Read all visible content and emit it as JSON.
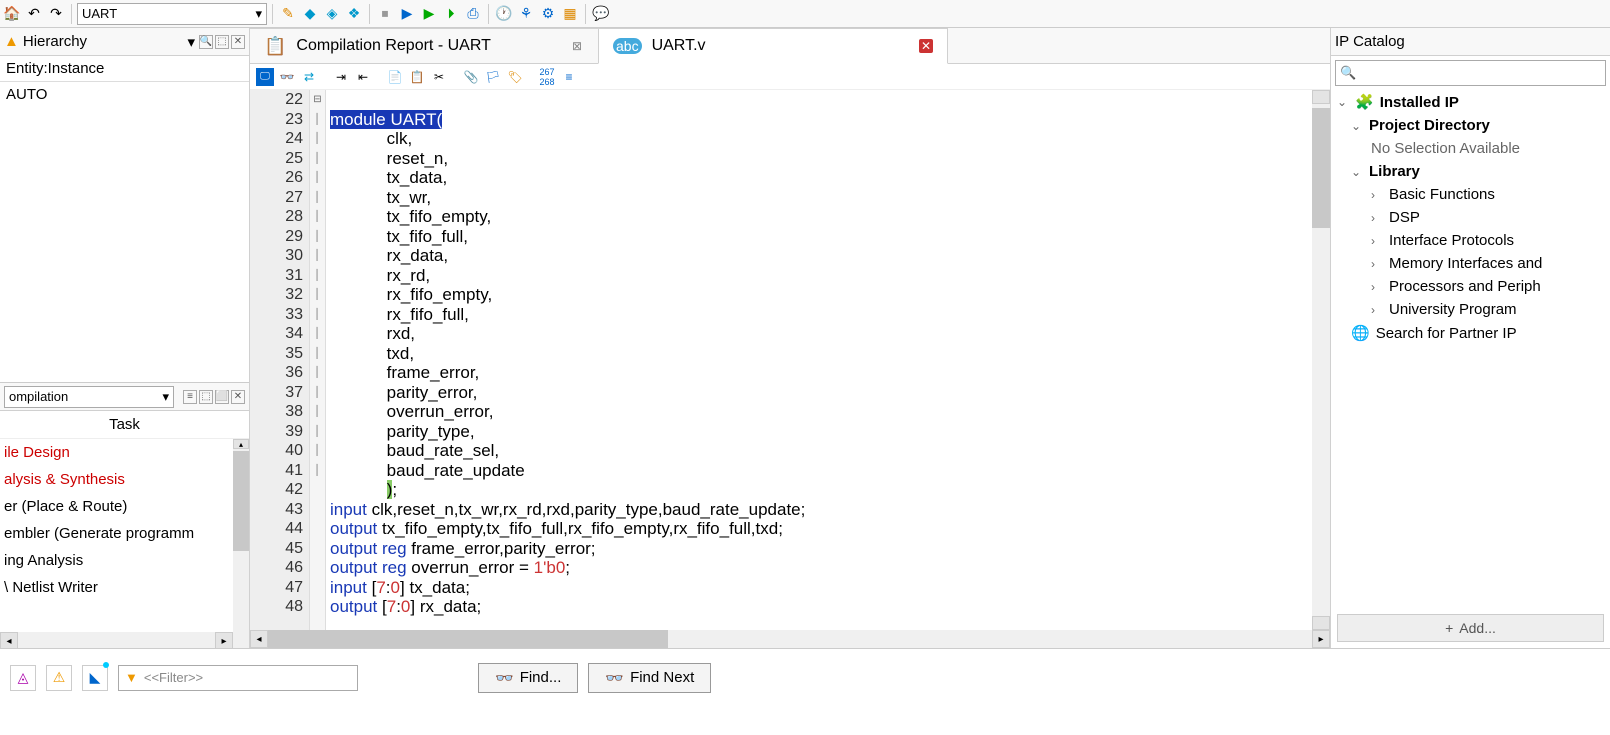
{
  "toolbar": {
    "project_dd": "UART"
  },
  "hierarchy": {
    "title": "Hierarchy",
    "col": "Entity:Instance",
    "row": "AUTO"
  },
  "tasks": {
    "title": "ompilation",
    "header": "Task",
    "items": [
      {
        "text": "ile Design",
        "red": true
      },
      {
        "text": "alysis & Synthesis",
        "red": true
      },
      {
        "text": "er (Place & Route)",
        "red": false
      },
      {
        "text": "embler (Generate programm",
        "red": false
      },
      {
        "text": "ing Analysis",
        "red": false
      },
      {
        "text": "\\ Netlist Writer",
        "red": false
      }
    ]
  },
  "tabs": [
    {
      "label": "Compilation Report - UART",
      "active": false,
      "closeRed": false
    },
    {
      "label": "UART.v",
      "active": true,
      "closeRed": true
    }
  ],
  "code": {
    "start": 22,
    "lines": [
      "",
      "module UART(",
      "            clk,",
      "            reset_n,",
      "            tx_data,",
      "            tx_wr,",
      "            tx_fifo_empty,",
      "            tx_fifo_full,",
      "            rx_data,",
      "            rx_rd,",
      "            rx_fifo_empty,",
      "            rx_fifo_full,",
      "            rxd,",
      "            txd,",
      "            frame_error,",
      "            parity_error,",
      "            overrun_error,",
      "            parity_type,",
      "            baud_rate_sel,",
      "            baud_rate_update",
      "            );",
      "input clk,reset_n,tx_wr,rx_rd,rxd,parity_type,baud_rate_update;",
      "output tx_fifo_empty,tx_fifo_full,rx_fifo_empty,rx_fifo_full,txd;",
      "output reg frame_error,parity_error;",
      "output reg overrun_error = 1'b0;",
      "input [7:0] tx_data;",
      "output [7:0] rx_data;"
    ]
  },
  "ip": {
    "title": "IP Catalog",
    "root": "Installed IP",
    "projdir": "Project Directory",
    "nosel": "No Selection Available",
    "lib": "Library",
    "items": [
      "Basic Functions",
      "DSP",
      "Interface Protocols",
      "Memory Interfaces and",
      "Processors and Periph",
      "University Program"
    ],
    "search": "Search for Partner IP",
    "add": "Add..."
  },
  "bottom": {
    "filter_ph": "<<Filter>>",
    "find": "Find...",
    "find_next": "Find Next"
  }
}
